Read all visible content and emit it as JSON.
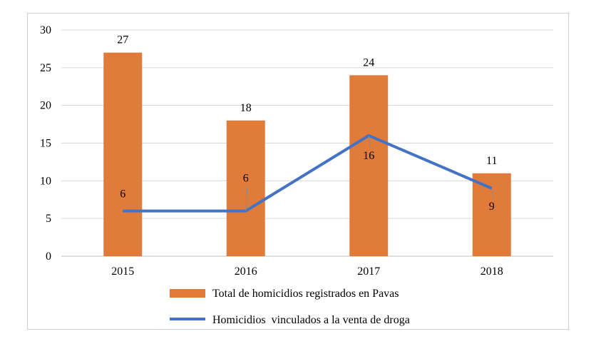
{
  "chart_data": {
    "type": "bar",
    "categories": [
      "2015",
      "2016",
      "2017",
      "2018"
    ],
    "ylim": [
      0,
      30
    ],
    "yticks": [
      0,
      5,
      10,
      15,
      20,
      25,
      30
    ],
    "grid": true,
    "legend_position": "bottom",
    "series": [
      {
        "name": "Total de homicidios registrados en Pavas",
        "type": "bar",
        "color": "#E07B39",
        "values": [
          27,
          18,
          24,
          11
        ]
      },
      {
        "name": "Homicidios  vinculados a la venta de droga",
        "type": "line",
        "color": "#4472C4",
        "values": [
          6,
          6,
          16,
          9
        ]
      }
    ]
  }
}
